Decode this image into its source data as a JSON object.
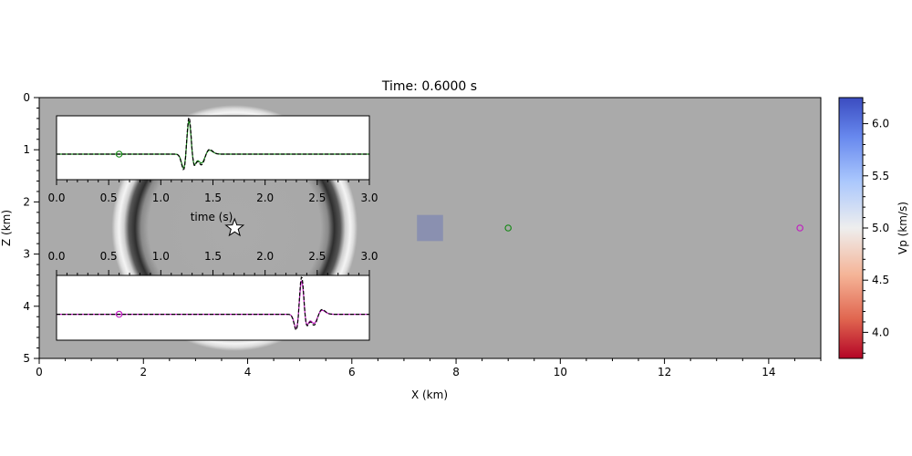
{
  "title": "Time: 0.6000 s",
  "colors": {
    "background_gray": "#aaaaaa",
    "anomaly_box": "#8a90b0",
    "receiver_1": "#1a8a1a",
    "receiver_2": "#c020c0",
    "synthetic_trace": "#000000"
  },
  "chart_data": [
    {
      "type": "heatmap",
      "name": "wavefield",
      "title": "Time: 0.6000 s",
      "xlabel": "X (km)",
      "ylabel": "Z (km)",
      "xlim": [
        0,
        15
      ],
      "ylim": [
        5,
        0
      ],
      "xticks": [
        "0",
        "2",
        "4",
        "6",
        "8",
        "10",
        "12",
        "14"
      ],
      "yticks": [
        "0",
        "1",
        "2",
        "3",
        "4",
        "5"
      ],
      "source": {
        "x": 3.75,
        "z": 2.5,
        "marker": "star"
      },
      "receivers": [
        {
          "x": 9.0,
          "z": 2.5,
          "color": "#1a8a1a"
        },
        {
          "x": 14.6,
          "z": 2.5,
          "color": "#c020c0"
        }
      ],
      "anomaly": {
        "x0": 7.25,
        "x1": 7.75,
        "z0": 2.25,
        "z1": 2.75
      },
      "wavefront": {
        "center_x": 3.75,
        "center_z": 2.5,
        "radius_km": 2.0
      }
    },
    {
      "type": "line",
      "name": "colorbar",
      "label": "Vp (km/s)",
      "colormap": "coolwarm_r",
      "range": [
        3.75,
        6.25
      ],
      "ticks": [
        "4.0",
        "4.5",
        "5.0",
        "5.5",
        "6.0"
      ]
    },
    {
      "type": "line",
      "name": "trace_receiver_1",
      "xlabel": "time (s)",
      "xlim": [
        0,
        3
      ],
      "xticks": [
        "0.0",
        "0.5",
        "1.0",
        "1.5",
        "2.0",
        "2.5",
        "3.0"
      ],
      "series": [
        {
          "role": "observed",
          "color": "#1a8a1a",
          "style": "solid"
        },
        {
          "role": "synthetic",
          "color": "#000000",
          "style": "dashed"
        }
      ],
      "pulse_time": 1.27,
      "current_time": 0.6
    },
    {
      "type": "line",
      "name": "trace_receiver_2",
      "xlim": [
        0,
        3
      ],
      "xticks": [
        "0.0",
        "0.5",
        "1.0",
        "1.5",
        "2.0",
        "2.5",
        "3.0"
      ],
      "series": [
        {
          "role": "observed",
          "color": "#c020c0",
          "style": "solid"
        },
        {
          "role": "synthetic",
          "color": "#000000",
          "style": "dashed"
        }
      ],
      "pulse_time": 2.35,
      "current_time": 0.6
    }
  ]
}
